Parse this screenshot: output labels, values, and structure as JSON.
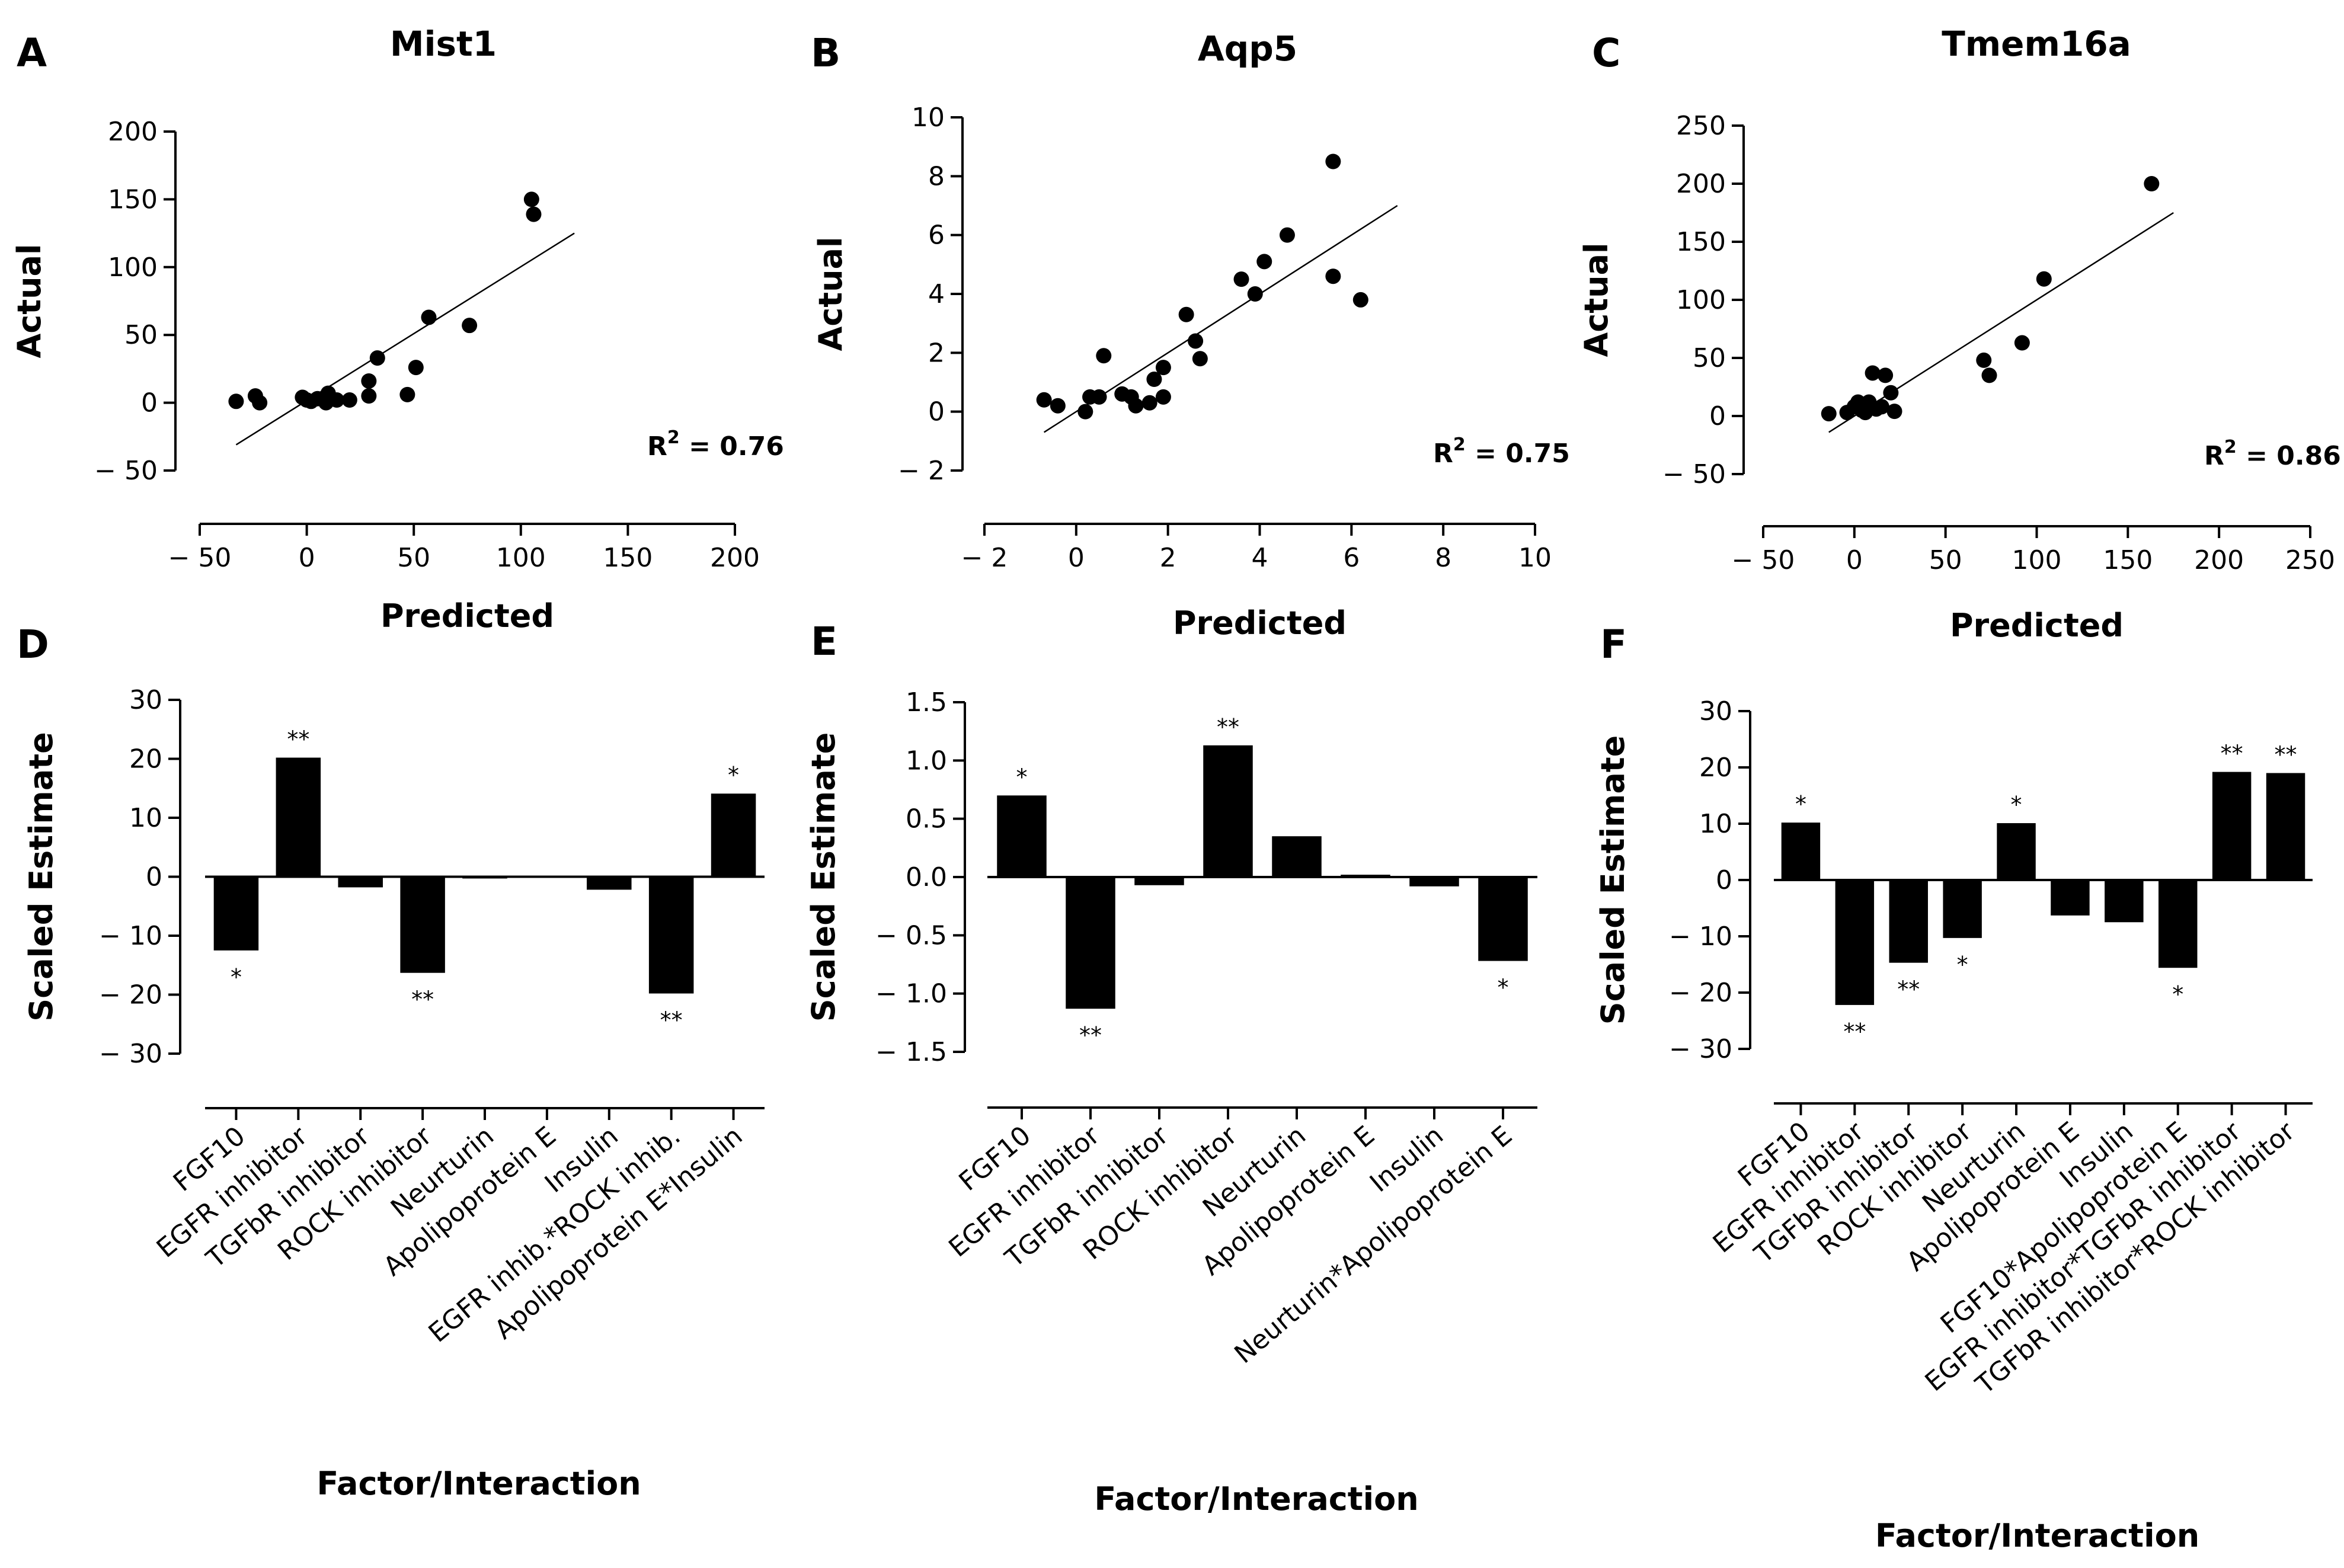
{
  "figure": {
    "panels": [
      {
        "id": "A",
        "letter": "A",
        "title": "Mist1"
      },
      {
        "id": "B",
        "letter": "B",
        "title": "Aqp5"
      },
      {
        "id": "C",
        "letter": "C",
        "title": "Tmem16a"
      },
      {
        "id": "D",
        "letter": "D",
        "title": ""
      },
      {
        "id": "E",
        "letter": "E",
        "title": ""
      },
      {
        "id": "F",
        "letter": "F",
        "title": ""
      }
    ]
  },
  "chart_data": [
    {
      "panel": "A",
      "type": "scatter",
      "title": "Mist1",
      "xlabel": "Predicted",
      "ylabel": "Actual",
      "xlim": [
        -50,
        200
      ],
      "ylim": [
        -50,
        200
      ],
      "xticks": [
        -50,
        0,
        50,
        100,
        150,
        200
      ],
      "yticks": [
        -50,
        0,
        50,
        100,
        150,
        200
      ],
      "xtick_labels": [
        "− 50",
        "0",
        "50",
        "100",
        "150",
        "200"
      ],
      "ytick_labels": [
        "− 50",
        "0",
        "50",
        "100",
        "150",
        "200"
      ],
      "r_squared": "0.76",
      "fit_line": [
        [
          -33,
          -31
        ],
        [
          125,
          125
        ]
      ],
      "points": [
        [
          -33,
          1
        ],
        [
          -24,
          5
        ],
        [
          -22,
          0
        ],
        [
          -2,
          4
        ],
        [
          0,
          2
        ],
        [
          2,
          1
        ],
        [
          5,
          3
        ],
        [
          9,
          0
        ],
        [
          10,
          7
        ],
        [
          14,
          2
        ],
        [
          20,
          2
        ],
        [
          29,
          5
        ],
        [
          29,
          16
        ],
        [
          33,
          33
        ],
        [
          47,
          6
        ],
        [
          51,
          26
        ],
        [
          57,
          63
        ],
        [
          76,
          57
        ],
        [
          105,
          150
        ],
        [
          106,
          139
        ]
      ]
    },
    {
      "panel": "B",
      "type": "scatter",
      "title": "Aqp5",
      "xlabel": "Predicted",
      "ylabel": "Actual",
      "xlim": [
        -2,
        10
      ],
      "ylim": [
        -2,
        10
      ],
      "xticks": [
        -2,
        0,
        2,
        4,
        6,
        8,
        10
      ],
      "yticks": [
        -2,
        0,
        2,
        4,
        6,
        8,
        10
      ],
      "xtick_labels": [
        "− 2",
        "0",
        "2",
        "4",
        "6",
        "8",
        "10"
      ],
      "ytick_labels": [
        "− 2",
        "0",
        "2",
        "4",
        "6",
        "8",
        "10"
      ],
      "r_squared": "0.75",
      "fit_line": [
        [
          -0.7,
          -0.7
        ],
        [
          7,
          7
        ]
      ],
      "points": [
        [
          -0.7,
          0.4
        ],
        [
          -0.4,
          0.2
        ],
        [
          0.2,
          0.0
        ],
        [
          0.3,
          0.5
        ],
        [
          0.5,
          0.5
        ],
        [
          0.6,
          1.9
        ],
        [
          1.0,
          0.6
        ],
        [
          1.2,
          0.5
        ],
        [
          1.3,
          0.2
        ],
        [
          1.6,
          0.3
        ],
        [
          1.7,
          1.1
        ],
        [
          1.9,
          0.5
        ],
        [
          1.9,
          1.5
        ],
        [
          2.4,
          3.3
        ],
        [
          2.6,
          2.4
        ],
        [
          2.7,
          1.8
        ],
        [
          3.6,
          4.5
        ],
        [
          3.9,
          4.0
        ],
        [
          4.1,
          5.1
        ],
        [
          4.6,
          6.0
        ],
        [
          5.6,
          4.6
        ],
        [
          5.6,
          8.5
        ],
        [
          6.2,
          3.8
        ]
      ]
    },
    {
      "panel": "C",
      "type": "scatter",
      "title": "Tmem16a",
      "xlabel": "Predicted",
      "ylabel": "Actual",
      "xlim": [
        -50,
        250
      ],
      "ylim": [
        -50,
        250
      ],
      "xticks": [
        -50,
        0,
        50,
        100,
        150,
        200,
        250
      ],
      "yticks": [
        -50,
        0,
        50,
        100,
        150,
        200,
        250
      ],
      "xtick_labels": [
        "− 50",
        "0",
        "50",
        "100",
        "150",
        "200",
        "250"
      ],
      "ytick_labels": [
        "− 50",
        "0",
        "50",
        "100",
        "150",
        "200",
        "250"
      ],
      "r_squared": "0.86",
      "fit_line": [
        [
          -14,
          -14
        ],
        [
          175,
          175
        ]
      ],
      "points": [
        [
          -14,
          2
        ],
        [
          -4,
          3
        ],
        [
          0,
          8
        ],
        [
          2,
          12
        ],
        [
          4,
          5
        ],
        [
          6,
          3
        ],
        [
          8,
          12
        ],
        [
          10,
          37
        ],
        [
          12,
          6
        ],
        [
          15,
          8
        ],
        [
          17,
          35
        ],
        [
          20,
          20
        ],
        [
          22,
          4
        ],
        [
          71,
          48
        ],
        [
          74,
          35
        ],
        [
          92,
          63
        ],
        [
          104,
          118
        ],
        [
          163,
          200
        ]
      ]
    },
    {
      "panel": "D",
      "type": "bar",
      "xlabel": "Factor/Interaction",
      "ylabel": "Scaled Estimate",
      "ylim": [
        -30,
        30
      ],
      "yticks": [
        -30,
        -20,
        -10,
        0,
        10,
        20,
        30
      ],
      "ytick_labels": [
        "− 30",
        "− 20",
        "− 10",
        "0",
        "10",
        "20",
        "30"
      ],
      "categories": [
        "FGF10",
        "EGFR inhibitor",
        "TGFbR inhibitor",
        "ROCK inhibitor",
        "Neurturin",
        "Apolipoprotein E",
        "Insulin",
        "EGFR inhib.*ROCK inhib.",
        "Apolipoprotein E*Insulin"
      ],
      "values": [
        -12.5,
        20.2,
        -1.8,
        -16.3,
        -0.3,
        -0.2,
        -2.2,
        -19.8,
        14.1
      ],
      "significance": [
        "*",
        "**",
        "",
        "**",
        "",
        "",
        "",
        "**",
        "*"
      ]
    },
    {
      "panel": "E",
      "type": "bar",
      "xlabel": "Factor/Interaction",
      "ylabel": "Scaled Estimate",
      "ylim": [
        -1.5,
        1.5
      ],
      "yticks": [
        -1.5,
        -1.0,
        -0.5,
        0.0,
        0.5,
        1.0,
        1.5
      ],
      "ytick_labels": [
        "− 1.5",
        "− 1.0",
        "− 0.5",
        "0.0",
        "0.5",
        "1.0",
        "1.5"
      ],
      "categories": [
        "FGF10",
        "EGFR inhibitor",
        "TGFbR inhibitor",
        "ROCK inhibitor",
        "Neurturin",
        "Apolipoprotein E",
        "Insulin",
        "Neurturin*Apolipoprotein E"
      ],
      "values": [
        0.7,
        -1.13,
        -0.07,
        1.13,
        0.35,
        0.02,
        -0.08,
        -0.72
      ],
      "significance": [
        "*",
        "**",
        "",
        "**",
        "",
        "",
        "",
        "*"
      ]
    },
    {
      "panel": "F",
      "type": "bar",
      "xlabel": "Factor/Interaction",
      "ylabel": "Scaled Estimate",
      "ylim": [
        -30,
        30
      ],
      "yticks": [
        -30,
        -20,
        -10,
        0,
        10,
        20,
        30
      ],
      "ytick_labels": [
        "− 30",
        "− 20",
        "− 10",
        "0",
        "10",
        "20",
        "30"
      ],
      "categories": [
        "FGF10",
        "EGFR inhibitor",
        "TGFbR inhibitor",
        "ROCK inhibitor",
        "Neurturin",
        "Apolipoprotein E",
        "Insulin",
        "FGF10*Apolipoprotein E",
        "EGFR inhibitor*TGFbR inhibitor",
        "TGFbR inhibitor*ROCK inhibitor"
      ],
      "values": [
        10.2,
        -22.2,
        -14.7,
        -10.3,
        10.1,
        -6.3,
        -7.5,
        -15.6,
        19.2,
        19.0
      ],
      "significance": [
        "*",
        "**",
        "**",
        "*",
        "*",
        "",
        "",
        "*",
        "**",
        "**"
      ]
    }
  ]
}
